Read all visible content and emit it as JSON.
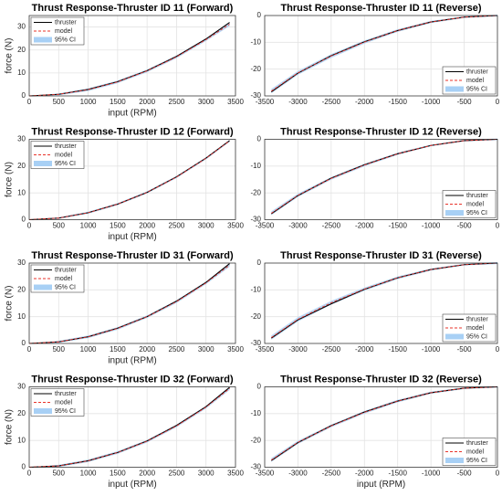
{
  "chart_data": [
    {
      "type": "line",
      "title": "Thrust Response-Thruster ID 11 (Forward)",
      "xlabel": "input (RPM)",
      "ylabel": "force (N)",
      "x": [
        0,
        500,
        1000,
        1500,
        2000,
        2500,
        3000,
        3400
      ],
      "series": [
        {
          "name": "thruster",
          "color": "#000000",
          "values": [
            0,
            0.7,
            2.8,
            6.2,
            11.0,
            17.2,
            24.8,
            32.0
          ]
        },
        {
          "name": "model",
          "color": "#e8332a",
          "linestyle": "dashed",
          "values": [
            0,
            0.7,
            2.7,
            6.1,
            10.9,
            17.0,
            24.5,
            31.2
          ]
        },
        {
          "name": "95% CI",
          "color": "#a8d0f5",
          "lower": [
            0,
            0.3,
            2.1,
            5.5,
            10.3,
            16.4,
            23.9,
            30.4
          ],
          "upper": [
            0,
            1.1,
            3.3,
            6.7,
            11.5,
            17.6,
            25.1,
            32.0
          ]
        }
      ],
      "xlim": [
        0,
        3500
      ],
      "ylim": [
        0,
        35
      ],
      "xticks": [
        0,
        500,
        1000,
        1500,
        2000,
        2500,
        3000,
        3500
      ],
      "yticks": [
        0,
        10,
        20,
        30
      ],
      "grid": true,
      "legend": "upper left"
    },
    {
      "type": "line",
      "title": "Thrust Response-Thruster ID 11 (Reverse)",
      "x": [
        -3400,
        -3000,
        -2500,
        -2000,
        -1500,
        -1000,
        -500,
        0
      ],
      "series": [
        {
          "name": "thruster",
          "color": "#000000",
          "values": [
            -28.5,
            -21.5,
            -15.0,
            -9.8,
            -5.6,
            -2.4,
            -0.6,
            0
          ]
        },
        {
          "name": "model",
          "color": "#e8332a",
          "linestyle": "dashed",
          "values": [
            -28.2,
            -21.4,
            -15.1,
            -9.9,
            -5.6,
            -2.4,
            -0.6,
            0
          ]
        },
        {
          "name": "95% CI",
          "color": "#a8d0f5",
          "lower": [
            -29.0,
            -22.1,
            -15.8,
            -10.5,
            -6.1,
            -2.8,
            -0.9,
            -0.3
          ],
          "upper": [
            -27.4,
            -20.7,
            -14.4,
            -9.3,
            -5.1,
            -2.0,
            -0.3,
            0.3
          ]
        }
      ],
      "xlim": [
        -3500,
        0
      ],
      "ylim": [
        -30,
        0
      ],
      "xticks": [
        -3500,
        -3000,
        -2500,
        -2000,
        -1500,
        -1000,
        -500,
        0
      ],
      "yticks": [
        -30,
        -20,
        -10,
        0
      ],
      "grid": true,
      "legend": "lower right"
    },
    {
      "type": "line",
      "title": "Thrust Response-Thruster ID 12 (Forward)",
      "xlabel": "input (RPM)",
      "ylabel": "force (N)",
      "x": [
        0,
        500,
        1000,
        1500,
        2000,
        2500,
        3000,
        3400
      ],
      "series": [
        {
          "name": "thruster",
          "color": "#000000",
          "values": [
            0,
            0.6,
            2.6,
            5.8,
            10.2,
            16.0,
            23.0,
            29.5
          ]
        },
        {
          "name": "model",
          "color": "#e8332a",
          "linestyle": "dashed",
          "values": [
            0,
            0.6,
            2.6,
            5.8,
            10.2,
            15.9,
            22.9,
            29.4
          ]
        },
        {
          "name": "95% CI",
          "color": "#a8d0f5",
          "lower": [
            0,
            0.3,
            2.2,
            5.4,
            9.8,
            15.5,
            22.5,
            29.0
          ],
          "upper": [
            0,
            0.9,
            3.0,
            6.2,
            10.6,
            16.3,
            23.3,
            29.8
          ]
        }
      ],
      "xlim": [
        0,
        3500
      ],
      "ylim": [
        0,
        30
      ],
      "xticks": [
        0,
        500,
        1000,
        1500,
        2000,
        2500,
        3000,
        3500
      ],
      "yticks": [
        0,
        10,
        20,
        30
      ],
      "grid": true,
      "legend": "upper left"
    },
    {
      "type": "line",
      "title": "Thrust Response-Thruster ID 12 (Reverse)",
      "x": [
        -3400,
        -3000,
        -2500,
        -2000,
        -1500,
        -1000,
        -500,
        0
      ],
      "series": [
        {
          "name": "thruster",
          "color": "#000000",
          "values": [
            -27.8,
            -21.0,
            -14.5,
            -9.5,
            -5.4,
            -2.3,
            -0.5,
            0
          ]
        },
        {
          "name": "model",
          "color": "#e8332a",
          "linestyle": "dashed",
          "values": [
            -27.6,
            -20.9,
            -14.6,
            -9.6,
            -5.4,
            -2.3,
            -0.5,
            0
          ]
        },
        {
          "name": "95% CI",
          "color": "#a8d0f5",
          "lower": [
            -28.3,
            -21.5,
            -15.1,
            -10.1,
            -5.8,
            -2.6,
            -0.8,
            -0.3
          ],
          "upper": [
            -26.9,
            -20.3,
            -14.1,
            -9.1,
            -5.0,
            -2.0,
            -0.2,
            0.3
          ]
        }
      ],
      "xlim": [
        -3500,
        0
      ],
      "ylim": [
        -30,
        0
      ],
      "xticks": [
        -3500,
        -3000,
        -2500,
        -2000,
        -1500,
        -1000,
        -500,
        0
      ],
      "yticks": [
        -30,
        -20,
        -10,
        0
      ],
      "grid": true,
      "legend": "lower right"
    },
    {
      "type": "line",
      "title": "Thrust Response-Thruster ID 31 (Forward)",
      "xlabel": "input (RPM)",
      "ylabel": "force (N)",
      "x": [
        0,
        500,
        1000,
        1500,
        2000,
        2500,
        3000,
        3400
      ],
      "series": [
        {
          "name": "thruster",
          "color": "#000000",
          "values": [
            0,
            0.6,
            2.5,
            5.7,
            10.0,
            15.8,
            22.8,
            29.8
          ]
        },
        {
          "name": "model",
          "color": "#e8332a",
          "linestyle": "dashed",
          "values": [
            0,
            0.6,
            2.5,
            5.6,
            10.0,
            15.6,
            22.6,
            29.2
          ]
        },
        {
          "name": "95% CI",
          "color": "#a8d0f5",
          "lower": [
            0,
            0.2,
            2.0,
            5.1,
            9.5,
            15.1,
            22.1,
            28.6
          ],
          "upper": [
            0,
            1.0,
            3.0,
            6.1,
            10.5,
            16.1,
            23.1,
            29.8
          ]
        }
      ],
      "xlim": [
        0,
        3500
      ],
      "ylim": [
        0,
        30
      ],
      "xticks": [
        0,
        500,
        1000,
        1500,
        2000,
        2500,
        3000,
        3500
      ],
      "yticks": [
        0,
        10,
        20,
        30
      ],
      "grid": true,
      "legend": "upper left"
    },
    {
      "type": "line",
      "title": "Thrust Response-Thruster ID 31 (Reverse)",
      "x": [
        -3400,
        -3000,
        -2500,
        -2000,
        -1500,
        -1000,
        -500,
        0
      ],
      "series": [
        {
          "name": "thruster",
          "color": "#000000",
          "values": [
            -28.0,
            -21.2,
            -15.2,
            -9.8,
            -5.5,
            -2.4,
            -0.6,
            0
          ]
        },
        {
          "name": "model",
          "color": "#e8332a",
          "linestyle": "dashed",
          "values": [
            -27.8,
            -21.0,
            -14.8,
            -9.7,
            -5.5,
            -2.4,
            -0.6,
            0
          ]
        },
        {
          "name": "95% CI",
          "color": "#a8d0f5",
          "lower": [
            -28.6,
            -21.8,
            -15.5,
            -10.3,
            -6.0,
            -2.8,
            -0.9,
            -0.4
          ],
          "upper": [
            -27.0,
            -20.2,
            -14.1,
            -9.1,
            -5.0,
            -2.0,
            -0.3,
            0.4
          ]
        }
      ],
      "xlim": [
        -3500,
        0
      ],
      "ylim": [
        -30,
        0
      ],
      "xticks": [
        -3500,
        -3000,
        -2500,
        -2000,
        -1500,
        -1000,
        -500,
        0
      ],
      "yticks": [
        -30,
        -20,
        -10,
        0
      ],
      "grid": true,
      "legend": "lower right"
    },
    {
      "type": "line",
      "title": "Thrust Response-Thruster ID 32 (Forward)",
      "xlabel": "input (RPM)",
      "ylabel": "force (N)",
      "x": [
        0,
        500,
        1000,
        1500,
        2000,
        2500,
        3000,
        3400
      ],
      "series": [
        {
          "name": "thruster",
          "color": "#000000",
          "values": [
            0,
            0.5,
            2.4,
            5.5,
            9.8,
            15.6,
            22.6,
            29.8
          ]
        },
        {
          "name": "model",
          "color": "#e8332a",
          "linestyle": "dashed",
          "values": [
            0,
            0.5,
            2.4,
            5.5,
            9.7,
            15.4,
            22.4,
            29.4
          ]
        },
        {
          "name": "95% CI",
          "color": "#a8d0f5",
          "lower": [
            0,
            0.1,
            1.9,
            5.0,
            9.2,
            14.9,
            21.9,
            28.8
          ],
          "upper": [
            0,
            0.9,
            2.9,
            6.0,
            10.2,
            15.9,
            22.9,
            30.0
          ]
        }
      ],
      "xlim": [
        0,
        3500
      ],
      "ylim": [
        0,
        30
      ],
      "xticks": [
        0,
        500,
        1000,
        1500,
        2000,
        2500,
        3000,
        3500
      ],
      "yticks": [
        0,
        10,
        20,
        30
      ],
      "grid": true,
      "legend": "upper left"
    },
    {
      "type": "line",
      "title": "Thrust Response-Thruster ID 32 (Reverse)",
      "xlabel": "input (RPM)",
      "x": [
        -3400,
        -3000,
        -2500,
        -2000,
        -1500,
        -1000,
        -500,
        0
      ],
      "series": [
        {
          "name": "thruster",
          "color": "#000000",
          "values": [
            -27.5,
            -20.8,
            -14.5,
            -9.4,
            -5.3,
            -2.2,
            -0.5,
            0
          ]
        },
        {
          "name": "model",
          "color": "#e8332a",
          "linestyle": "dashed",
          "values": [
            -27.3,
            -20.7,
            -14.6,
            -9.5,
            -5.3,
            -2.2,
            -0.5,
            0
          ]
        },
        {
          "name": "95% CI",
          "color": "#a8d0f5",
          "lower": [
            -28.0,
            -21.3,
            -15.1,
            -10.0,
            -5.8,
            -2.6,
            -0.8,
            -0.3
          ],
          "upper": [
            -26.6,
            -20.1,
            -14.1,
            -9.0,
            -4.8,
            -1.8,
            -0.2,
            0.3
          ]
        }
      ],
      "xlim": [
        -3500,
        0
      ],
      "ylim": [
        -30,
        0
      ],
      "xticks": [
        -3500,
        -3000,
        -2500,
        -2000,
        -1500,
        -1000,
        -500,
        0
      ],
      "yticks": [
        -30,
        -20,
        -10,
        0
      ],
      "grid": true,
      "legend": "lower right"
    }
  ]
}
